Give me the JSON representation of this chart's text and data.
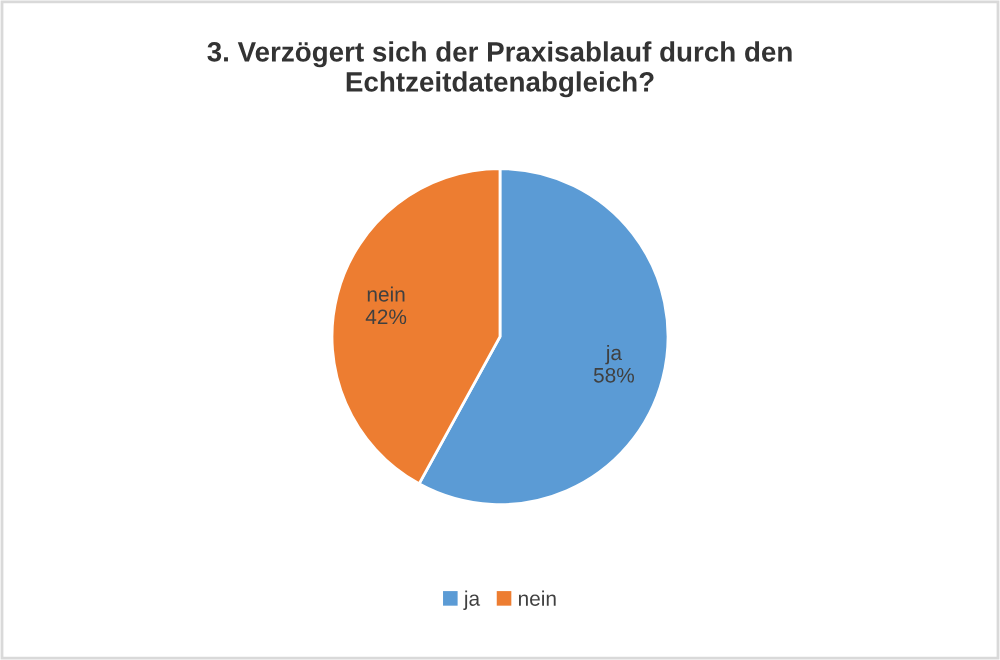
{
  "chart_data": {
    "type": "pie",
    "title": "3. Verzögert sich der Praxisablauf durch den Echtzeitdatenabgleich?",
    "categories": [
      "ja",
      "nein"
    ],
    "values": [
      58,
      42
    ],
    "colors": [
      "#5b9bd5",
      "#ed7d31"
    ],
    "value_labels": [
      "58%",
      "42%"
    ],
    "legend": "bottom"
  }
}
